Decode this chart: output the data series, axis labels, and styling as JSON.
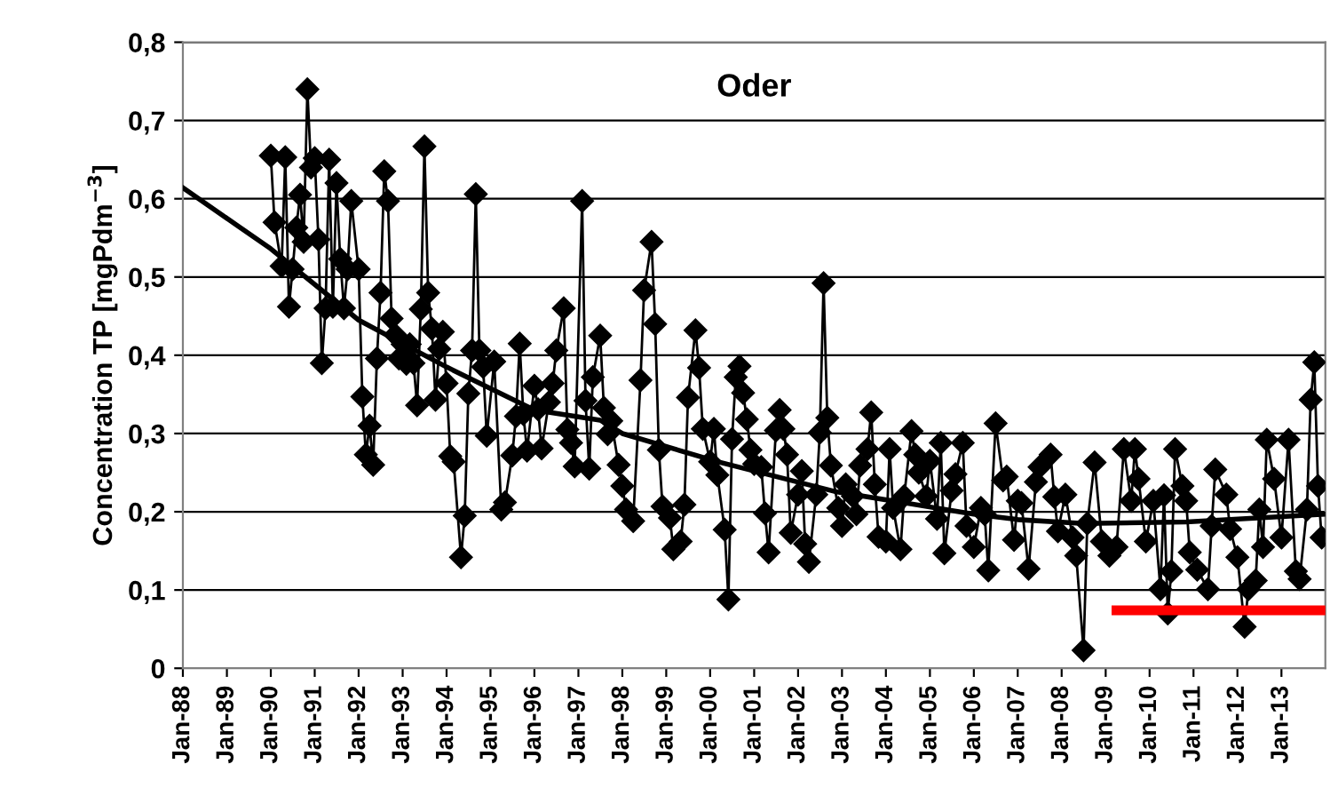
{
  "chart_data": {
    "type": "line",
    "title": "Oder",
    "ylabel": "Concentration TP [mgPdm$^{−3}$]",
    "xlim": [
      "1988-01",
      "2014-01"
    ],
    "xticks": [
      {
        "value": "1988-01",
        "label": "Jan-88"
      },
      {
        "value": "1989-01",
        "label": "Jan-89"
      },
      {
        "value": "1990-01",
        "label": "Jan-90"
      },
      {
        "value": "1991-01",
        "label": "Jan-91"
      },
      {
        "value": "1992-01",
        "label": "Jan-92"
      },
      {
        "value": "1993-01",
        "label": "Jan-93"
      },
      {
        "value": "1994-01",
        "label": "Jan-94"
      },
      {
        "value": "1995-01",
        "label": "Jan-95"
      },
      {
        "value": "1996-01",
        "label": "Jan-96"
      },
      {
        "value": "1997-01",
        "label": "Jan-97"
      },
      {
        "value": "1998-01",
        "label": "Jan-98"
      },
      {
        "value": "1999-01",
        "label": "Jan-99"
      },
      {
        "value": "2000-01",
        "label": "Jan-00"
      },
      {
        "value": "2001-01",
        "label": "Jan-01"
      },
      {
        "value": "2002-01",
        "label": "Jan-02"
      },
      {
        "value": "2003-01",
        "label": "Jan-03"
      },
      {
        "value": "2004-01",
        "label": "Jan-04"
      },
      {
        "value": "2005-01",
        "label": "Jan-05"
      },
      {
        "value": "2006-01",
        "label": "Jan-06"
      },
      {
        "value": "2007-01",
        "label": "Jan-07"
      },
      {
        "value": "2008-01",
        "label": "Jan-08"
      },
      {
        "value": "2009-01",
        "label": "Jan-09"
      },
      {
        "value": "2010-01",
        "label": "Jan-10"
      },
      {
        "value": "2011-01",
        "label": "Jan-11"
      },
      {
        "value": "2012-01",
        "label": "Jan-12"
      },
      {
        "value": "2013-01",
        "label": "Jan-13"
      }
    ],
    "ylim": [
      0,
      0.8
    ],
    "yticks": [
      0,
      {
        "value": 0.1,
        "label": "0,1"
      },
      {
        "value": 0.2,
        "label": "0,2"
      },
      {
        "value": 0.3,
        "label": "0,3"
      },
      {
        "value": 0.4,
        "label": "0,4"
      },
      {
        "value": 0.5,
        "label": "0,5"
      },
      {
        "value": 0.6,
        "label": "0,6"
      },
      {
        "value": 0.7,
        "label": "0,7"
      },
      {
        "value": 0.8,
        "label": "0,8"
      }
    ],
    "grid": "y",
    "series": [
      {
        "color": "#000000",
        "marker": "diamond",
        "x": [
          "1990-01",
          "1990-02",
          "1990-04",
          "1990-05",
          "1990-06",
          "1990-07",
          "1990-08",
          "1990-09",
          "1990-10",
          "1990-11",
          "1990-12",
          "1991-01",
          "1991-02",
          "1991-03",
          "1991-04",
          "1991-05",
          "1991-06",
          "1991-07",
          "1991-08",
          "1991-09",
          "1991-10",
          "1991-11",
          "1992-01",
          "1992-02",
          "1992-03",
          "1992-04",
          "1992-05",
          "1992-06",
          "1992-07",
          "1992-08",
          "1992-09",
          "1992-10",
          "1992-11",
          "1992-12",
          "1993-01",
          "1993-02",
          "1993-03",
          "1993-04",
          "1993-05",
          "1993-06",
          "1993-07",
          "1993-08",
          "1993-09",
          "1993-10",
          "1993-11",
          "1993-12",
          "1994-01",
          "1994-02",
          "1994-03",
          "1994-05",
          "1994-06",
          "1994-07",
          "1994-08",
          "1994-09",
          "1994-10",
          "1994-11",
          "1994-12",
          "1995-02",
          "1995-04",
          "1995-05",
          "1995-07",
          "1995-08",
          "1995-09",
          "1995-10",
          "1995-11",
          "1996-01",
          "1996-02",
          "1996-03",
          "1996-05",
          "1996-06",
          "1996-07",
          "1996-09",
          "1996-10",
          "1996-11",
          "1996-12",
          "1997-02",
          "1997-03",
          "1997-04",
          "1997-05",
          "1997-07",
          "1997-08",
          "1997-09",
          "1997-10",
          "1997-12",
          "1998-01",
          "1998-02",
          "1998-04",
          "1998-06",
          "1998-07",
          "1998-09",
          "1998-10",
          "1998-11",
          "1998-12",
          "1999-02",
          "1999-03",
          "1999-05",
          "1999-06",
          "1999-07",
          "1999-09",
          "1999-10",
          "1999-11",
          "2000-01",
          "2000-02",
          "2000-03",
          "2000-05",
          "2000-06",
          "2000-07",
          "2000-08",
          "2000-09",
          "2000-10",
          "2000-11",
          "2000-12",
          "2001-01",
          "2001-03",
          "2001-04",
          "2001-05",
          "2001-07",
          "2001-08",
          "2001-09",
          "2001-10",
          "2001-11",
          "2002-01",
          "2002-02",
          "2002-03",
          "2002-04",
          "2002-06",
          "2002-07",
          "2002-08",
          "2002-09",
          "2002-10",
          "2002-12",
          "2003-01",
          "2003-02",
          "2003-04",
          "2003-05",
          "2003-06",
          "2003-08",
          "2003-09",
          "2003-10",
          "2003-11",
          "2004-01",
          "2004-02",
          "2004-03",
          "2004-05",
          "2004-06",
          "2004-08",
          "2004-09",
          "2004-10",
          "2004-12",
          "2005-01",
          "2005-03",
          "2005-04",
          "2005-05",
          "2005-07",
          "2005-08",
          "2005-10",
          "2005-11",
          "2006-01",
          "2006-03",
          "2006-04",
          "2006-05",
          "2006-07",
          "2006-09",
          "2006-10",
          "2006-12",
          "2007-01",
          "2007-02",
          "2007-04",
          "2007-06",
          "2007-07",
          "2007-10",
          "2007-11",
          "2007-12",
          "2008-02",
          "2008-04",
          "2008-05",
          "2008-07",
          "2008-08",
          "2008-10",
          "2008-12",
          "2009-02",
          "2009-04",
          "2009-06",
          "2009-08",
          "2009-09",
          "2009-10",
          "2009-12",
          "2010-02",
          "2010-04",
          "2010-05",
          "2010-06",
          "2010-07",
          "2010-08",
          "2010-10",
          "2010-11",
          "2010-12",
          "2011-02",
          "2011-05",
          "2011-06",
          "2011-07",
          "2011-10",
          "2011-11",
          "2012-01",
          "2012-03",
          "2012-04",
          "2012-06",
          "2012-07",
          "2012-08",
          "2012-09",
          "2012-11",
          "2013-01",
          "2013-03",
          "2013-05",
          "2013-06",
          "2013-08",
          "2013-09",
          "2013-10",
          "2013-11",
          "2013-12"
        ],
        "values": [
          0.655,
          0.57,
          0.514,
          0.653,
          0.462,
          0.51,
          0.563,
          0.605,
          0.545,
          0.74,
          0.64,
          0.652,
          0.548,
          0.39,
          0.46,
          0.65,
          0.462,
          0.62,
          0.523,
          0.46,
          0.51,
          0.597,
          0.51,
          0.347,
          0.273,
          0.31,
          0.26,
          0.396,
          0.48,
          0.635,
          0.597,
          0.447,
          0.426,
          0.396,
          0.414,
          0.389,
          0.414,
          0.39,
          0.336,
          0.459,
          0.667,
          0.48,
          0.434,
          0.343,
          0.408,
          0.43,
          0.364,
          0.271,
          0.264,
          0.142,
          0.195,
          0.351,
          0.406,
          0.606,
          0.406,
          0.385,
          0.297,
          0.392,
          0.203,
          0.212,
          0.272,
          0.322,
          0.415,
          0.325,
          0.278,
          0.361,
          0.331,
          0.281,
          0.34,
          0.364,
          0.406,
          0.46,
          0.305,
          0.288,
          0.258,
          0.597,
          0.342,
          0.255,
          0.372,
          0.425,
          0.333,
          0.299,
          0.316,
          0.26,
          0.233,
          0.203,
          0.188,
          0.368,
          0.483,
          0.545,
          0.44,
          0.279,
          0.207,
          0.192,
          0.152,
          0.162,
          0.209,
          0.346,
          0.432,
          0.384,
          0.306,
          0.264,
          0.306,
          0.247,
          0.177,
          0.088,
          0.293,
          0.372,
          0.386,
          0.352,
          0.318,
          0.279,
          0.261,
          0.257,
          0.198,
          0.148,
          0.304,
          0.33,
          0.306,
          0.273,
          0.173,
          0.222,
          0.252,
          0.159,
          0.136,
          0.222,
          0.301,
          0.492,
          0.32,
          0.259,
          0.205,
          0.182,
          0.235,
          0.22,
          0.197,
          0.259,
          0.28,
          0.327,
          0.235,
          0.168,
          0.162,
          0.28,
          0.205,
          0.152,
          0.22,
          0.303,
          0.273,
          0.25,
          0.22,
          0.265,
          0.191,
          0.288,
          0.147,
          0.227,
          0.248,
          0.288,
          0.182,
          0.155,
          0.205,
          0.197,
          0.125,
          0.313,
          0.24,
          0.245,
          0.164,
          0.214,
          0.211,
          0.127,
          0.238,
          0.257,
          0.273,
          0.219,
          0.175,
          0.222,
          0.167,
          0.144,
          0.023,
          0.185,
          0.263,
          0.162,
          0.144,
          0.155,
          0.28,
          0.214,
          0.28,
          0.242,
          0.162,
          0.214,
          0.101,
          0.221,
          0.07,
          0.124,
          0.28,
          0.233,
          0.214,
          0.148,
          0.126,
          0.101,
          0.182,
          0.254,
          0.222,
          0.178,
          0.142,
          0.053,
          0.101,
          0.112,
          0.203,
          0.155,
          0.292,
          0.242,
          0.167,
          0.292,
          0.124,
          0.114,
          0.203,
          0.343,
          0.391,
          0.233,
          0.167
        ]
      },
      {
        "color": "#000000",
        "marker": "none",
        "x": [
          "1988-01",
          "1990-01",
          "1992-01",
          "1994-01",
          "1996-01",
          "1997-07",
          "1998-01",
          "2000-03",
          "2002-11",
          "2006-01",
          "2007-01",
          "2008-07",
          "2010-11",
          "2014-01"
        ],
        "values": [
          0.614,
          0.536,
          0.445,
          0.385,
          0.33,
          0.317,
          0.3,
          0.264,
          0.226,
          0.197,
          0.19,
          0.185,
          0.187,
          0.197
        ]
      },
      {
        "color": "#ff0000",
        "marker": "none",
        "x": [
          "2009-04",
          "2014-01"
        ],
        "values": [
          0.074,
          0.074
        ]
      }
    ]
  }
}
